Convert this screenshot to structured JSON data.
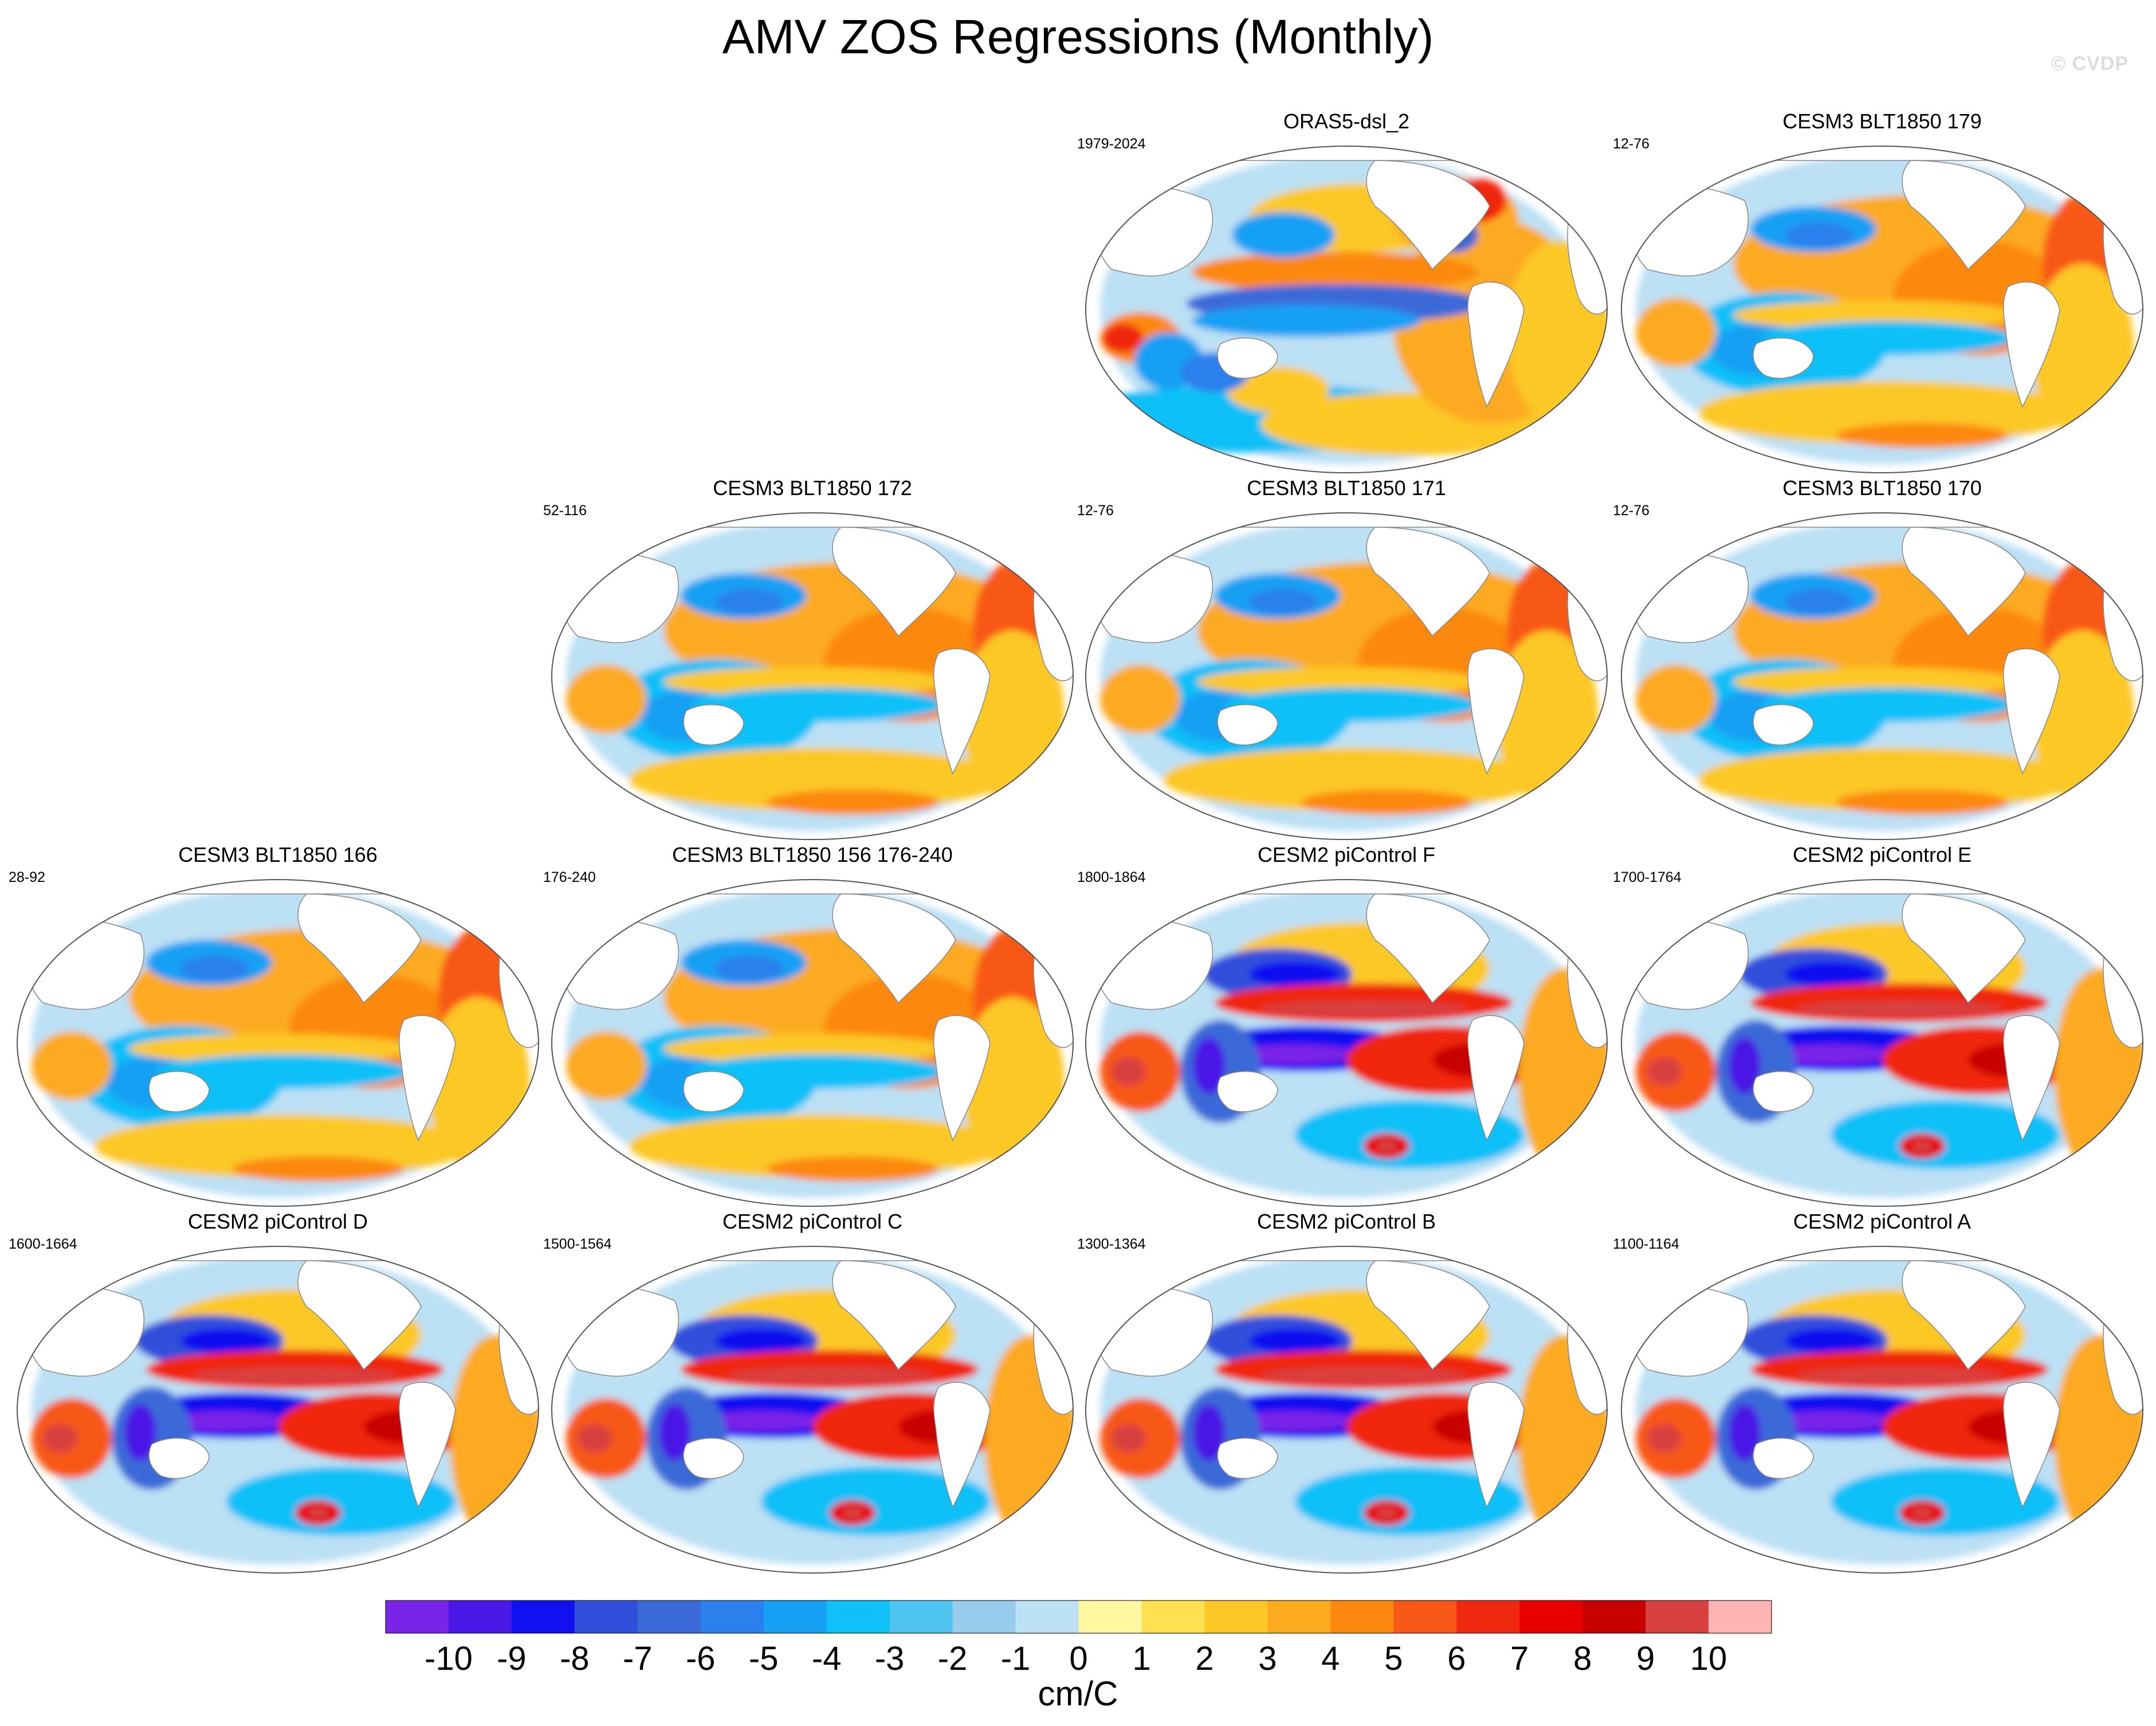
{
  "title": "AMV ZOS Regressions (Monthly)",
  "watermark": "© CVDP",
  "panels": [
    {
      "title": "ORAS5-dsl_2",
      "period": "1979-2024",
      "pattern": "obs"
    },
    {
      "title": "CESM3 BLT1850 179",
      "period": "12-76",
      "pattern": "cesm3"
    },
    {
      "title": "CESM3 BLT1850 172",
      "period": "52-116",
      "pattern": "cesm3"
    },
    {
      "title": "CESM3 BLT1850 171",
      "period": "12-76",
      "pattern": "cesm3"
    },
    {
      "title": "CESM3 BLT1850 170",
      "period": "12-76",
      "pattern": "cesm3"
    },
    {
      "title": "CESM3 BLT1850 166",
      "period": "28-92",
      "pattern": "cesm3"
    },
    {
      "title": "CESM3 BLT1850 156 176-240",
      "period": "176-240",
      "pattern": "cesm3"
    },
    {
      "title": "CESM2 piControl F",
      "period": "1800-1864",
      "pattern": "cesm2"
    },
    {
      "title": "CESM2 piControl E",
      "period": "1700-1764",
      "pattern": "cesm2"
    },
    {
      "title": "CESM2 piControl D",
      "period": "1600-1664",
      "pattern": "cesm2"
    },
    {
      "title": "CESM2 piControl C",
      "period": "1500-1564",
      "pattern": "cesm2"
    },
    {
      "title": "CESM2 piControl B",
      "period": "1300-1364",
      "pattern": "cesm2"
    },
    {
      "title": "CESM2 piControl A",
      "period": "1100-1164",
      "pattern": "cesm2"
    }
  ],
  "chart_data": {
    "type": "heatmap",
    "title": "AMV ZOS Regressions (Monthly)",
    "projection": "global ellipse map, Pacific-centered",
    "colorbar": {
      "units": "cm/C",
      "tick_labels": [
        "-10",
        "-9",
        "-8",
        "-7",
        "-6",
        "-5",
        "-4",
        "-3",
        "-2",
        "-1",
        "0",
        "1",
        "2",
        "3",
        "4",
        "5",
        "6",
        "7",
        "8",
        "9",
        "10"
      ],
      "colors": [
        "#7a24e8",
        "#4a18e6",
        "#1010f0",
        "#3050dc",
        "#3a6ad8",
        "#2a80ec",
        "#18a0f4",
        "#10c0f8",
        "#50c4f0",
        "#98ccec",
        "#bce0f4",
        "#fff8a0",
        "#fee050",
        "#fcc828",
        "#fcaa20",
        "#fc8810",
        "#f85818",
        "#f02810",
        "#e80000",
        "#c80000",
        "#d84040",
        "#ffb4b4"
      ]
    }
  }
}
